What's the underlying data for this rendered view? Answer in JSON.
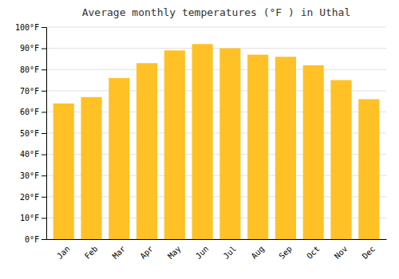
{
  "chart_data": {
    "type": "bar",
    "title": "Average monthly temperatures (°F ) in Uthal",
    "categories": [
      "Jan",
      "Feb",
      "Mar",
      "Apr",
      "May",
      "Jun",
      "Jul",
      "Aug",
      "Sep",
      "Oct",
      "Nov",
      "Dec"
    ],
    "values": [
      64,
      67,
      76,
      83,
      89,
      92,
      90,
      87,
      86,
      82,
      75,
      66
    ],
    "color": "#FFC125",
    "ylim": [
      0,
      100
    ],
    "yticks": [
      {
        "value": 0,
        "label": "0°F"
      },
      {
        "value": 10,
        "label": "10°F"
      },
      {
        "value": 20,
        "label": "20°F"
      },
      {
        "value": 30,
        "label": "30°F"
      },
      {
        "value": 40,
        "label": "40°F"
      },
      {
        "value": 50,
        "label": "50°F"
      },
      {
        "value": 60,
        "label": "60°F"
      },
      {
        "value": 70,
        "label": "70°F"
      },
      {
        "value": 80,
        "label": "80°F"
      },
      {
        "value": 90,
        "label": "90°F"
      },
      {
        "value": 100,
        "label": "100°F"
      }
    ],
    "grid": true
  }
}
